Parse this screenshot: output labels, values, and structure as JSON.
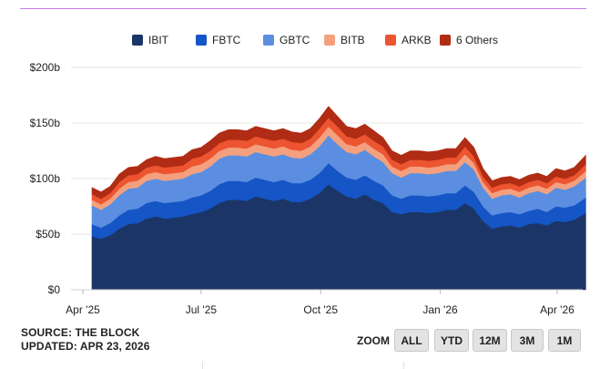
{
  "chart_data": {
    "type": "area",
    "stacked": true,
    "title": "",
    "xlabel": "",
    "ylabel": "",
    "ylim": [
      0,
      200
    ],
    "y_ticks": [
      "$0",
      "$50b",
      "$100b",
      "$150b",
      "$200b"
    ],
    "y_tick_values": [
      0,
      50,
      100,
      150,
      200
    ],
    "x_ticks": [
      "Apr '25",
      "Jul '25",
      "Oct '25",
      "Jan '26",
      "Apr '26"
    ],
    "x_tick_dates": [
      "2025-04-01",
      "2025-07-01",
      "2025-10-01",
      "2026-01-01",
      "2026-04-01"
    ],
    "grid": true,
    "legend_position": "top",
    "x": [
      "2025-04-08",
      "2025-04-15",
      "2025-04-22",
      "2025-04-29",
      "2025-05-06",
      "2025-05-13",
      "2025-05-20",
      "2025-05-27",
      "2025-06-03",
      "2025-06-10",
      "2025-06-17",
      "2025-06-24",
      "2025-07-01",
      "2025-07-08",
      "2025-07-15",
      "2025-07-22",
      "2025-07-29",
      "2025-08-05",
      "2025-08-12",
      "2025-08-19",
      "2025-08-26",
      "2025-09-02",
      "2025-09-09",
      "2025-09-16",
      "2025-09-23",
      "2025-09-30",
      "2025-10-07",
      "2025-10-14",
      "2025-10-21",
      "2025-10-28",
      "2025-11-04",
      "2025-11-11",
      "2025-11-18",
      "2025-11-25",
      "2025-12-02",
      "2025-12-09",
      "2025-12-16",
      "2025-12-23",
      "2025-12-30",
      "2026-01-06",
      "2026-01-13",
      "2026-01-20",
      "2026-01-27",
      "2026-02-03",
      "2026-02-10",
      "2026-02-17",
      "2026-02-24",
      "2026-03-03",
      "2026-03-10",
      "2026-03-17",
      "2026-03-24",
      "2026-03-31",
      "2026-04-07",
      "2026-04-14",
      "2026-04-23"
    ],
    "series": [
      {
        "name": "IBIT",
        "color": "#1b3566",
        "values": [
          48,
          46,
          49,
          55,
          59,
          60,
          64,
          66,
          64,
          65,
          66,
          68,
          70,
          73,
          78,
          81,
          81,
          80,
          84,
          82,
          80,
          82,
          79,
          79,
          82,
          87,
          95,
          89,
          84,
          82,
          86,
          81,
          78,
          70,
          68,
          70,
          70,
          69,
          70,
          72,
          72,
          78,
          73,
          62,
          55,
          57,
          58,
          56,
          59,
          60,
          58,
          62,
          61,
          63,
          69
        ]
      },
      {
        "name": "FBTC",
        "color": "#1555c5",
        "values": [
          11,
          10,
          11,
          12,
          13,
          13,
          14,
          14,
          14,
          14,
          14,
          15,
          15,
          16,
          17,
          17,
          17,
          17,
          17,
          17,
          17,
          17,
          17,
          17,
          17,
          18,
          19,
          18,
          17,
          17,
          17,
          17,
          16,
          15,
          14,
          15,
          15,
          15,
          15,
          15,
          15,
          16,
          15,
          13,
          12,
          12,
          12,
          12,
          12,
          13,
          12,
          13,
          13,
          13,
          14
        ]
      },
      {
        "name": "GBTC",
        "color": "#5b8ee0",
        "values": [
          17,
          16,
          17,
          18,
          19,
          19,
          20,
          20,
          20,
          20,
          20,
          21,
          21,
          22,
          23,
          23,
          23,
          23,
          23,
          23,
          23,
          23,
          23,
          22,
          23,
          24,
          25,
          24,
          23,
          23,
          23,
          22,
          21,
          20,
          19,
          20,
          20,
          20,
          20,
          20,
          20,
          21,
          20,
          17,
          15,
          16,
          16,
          15,
          16,
          16,
          16,
          17,
          16,
          17,
          18
        ]
      },
      {
        "name": "BITB",
        "color": "#f4a07f",
        "values": [
          5,
          5,
          5,
          6,
          6,
          6,
          6,
          6,
          6,
          6,
          6,
          7,
          7,
          7,
          7,
          7,
          7,
          7,
          7,
          7,
          7,
          7,
          7,
          7,
          7,
          8,
          8,
          8,
          7,
          7,
          7,
          7,
          7,
          6,
          6,
          6,
          6,
          6,
          6,
          6,
          6,
          7,
          6,
          5,
          5,
          5,
          5,
          5,
          5,
          5,
          5,
          5,
          5,
          5,
          6
        ]
      },
      {
        "name": "ARKB",
        "color": "#ec5530",
        "values": [
          5,
          5,
          5,
          6,
          6,
          6,
          6,
          6,
          6,
          6,
          6,
          7,
          7,
          7,
          7,
          7,
          7,
          7,
          7,
          7,
          7,
          7,
          7,
          7,
          7,
          8,
          8,
          8,
          7,
          7,
          7,
          7,
          7,
          6,
          6,
          6,
          6,
          6,
          6,
          6,
          6,
          7,
          6,
          5,
          5,
          5,
          5,
          5,
          5,
          5,
          5,
          5,
          5,
          5,
          6
        ]
      },
      {
        "name": "6 Others",
        "color": "#b02c14",
        "values": [
          6,
          6,
          6,
          7,
          7,
          7,
          7,
          8,
          8,
          8,
          8,
          8,
          8,
          9,
          9,
          9,
          9,
          9,
          9,
          9,
          9,
          9,
          9,
          9,
          9,
          9,
          10,
          9,
          9,
          9,
          9,
          9,
          8,
          8,
          8,
          8,
          8,
          8,
          8,
          8,
          8,
          8,
          8,
          7,
          6,
          6,
          6,
          6,
          6,
          6,
          6,
          7,
          7,
          7,
          8
        ]
      }
    ]
  },
  "footer": {
    "source": "SOURCE: THE BLOCK",
    "updated": "UPDATED: APR 23, 2026"
  },
  "zoom": {
    "label": "ZOOM",
    "buttons": [
      "ALL",
      "YTD",
      "12M",
      "3M",
      "1M"
    ]
  }
}
